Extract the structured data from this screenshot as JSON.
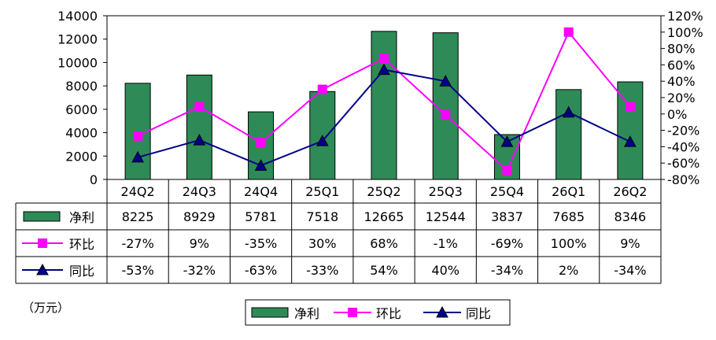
{
  "chart_data": {
    "type": "bar",
    "categories": [
      "24Q2",
      "24Q3",
      "24Q4",
      "25Q1",
      "25Q2",
      "25Q3",
      "25Q4",
      "26Q1",
      "26Q2"
    ],
    "series": [
      {
        "name": "净利",
        "type": "bar",
        "axis": "left",
        "color": "#2e8b57",
        "values": [
          8225,
          8929,
          5781,
          7518,
          12665,
          12544,
          3837,
          7685,
          8346
        ],
        "labels": [
          "8225",
          "8929",
          "5781",
          "7518",
          "12665",
          "12544",
          "3837",
          "7685",
          "8346"
        ]
      },
      {
        "name": "环比",
        "type": "line",
        "axis": "right",
        "color": "#ff00ff",
        "marker": "square",
        "values": [
          -27,
          9,
          -35,
          30,
          68,
          -1,
          -69,
          100,
          9
        ],
        "labels": [
          "-27%",
          "9%",
          "-35%",
          "30%",
          "68%",
          "-1%",
          "-69%",
          "100%",
          "9%"
        ]
      },
      {
        "name": "同比",
        "type": "line",
        "axis": "right",
        "color": "#00008b",
        "marker": "triangle",
        "values": [
          -53,
          -32,
          -63,
          -33,
          54,
          40,
          -34,
          2,
          -34
        ],
        "labels": [
          "-53%",
          "-32%",
          "-63%",
          "-33%",
          "54%",
          "40%",
          "-34%",
          "2%",
          "-34%"
        ]
      }
    ],
    "y_left": {
      "min": 0,
      "max": 14000,
      "ticks": [
        "0",
        "2000",
        "4000",
        "6000",
        "8000",
        "10000",
        "12000",
        "14000"
      ]
    },
    "y_right": {
      "min": -80,
      "max": 120,
      "ticks": [
        "-80%",
        "-60%",
        "-40%",
        "-20%",
        "0%",
        "20%",
        "40%",
        "60%",
        "80%",
        "100%",
        "120%"
      ]
    },
    "unit": "（万元）",
    "legend_position": "bottom",
    "grid": false,
    "data_table": true
  }
}
